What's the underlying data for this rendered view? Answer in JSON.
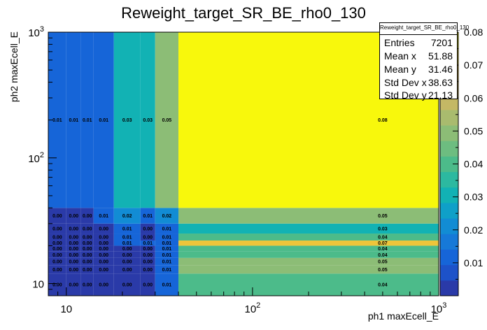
{
  "chart_data": {
    "type": "heatmap",
    "title": "Reweight_target_SR_BE_rho0_130",
    "xlabel": "ph1 maxEcell_E",
    "ylabel": "ph2 maxEcell_E",
    "x_scale": "log",
    "y_scale": "log",
    "xlim": [
      8,
      1000
    ],
    "ylim": [
      8,
      1000
    ],
    "x_ticks": [
      {
        "value": 10,
        "base": "10",
        "exp": ""
      },
      {
        "value": 100,
        "base": "10",
        "exp": "2"
      },
      {
        "value": 1000,
        "base": "10",
        "exp": "3"
      }
    ],
    "y_ticks": [
      {
        "value": 10,
        "base": "10",
        "exp": ""
      },
      {
        "value": 100,
        "base": "10",
        "exp": "2"
      },
      {
        "value": 1000,
        "base": "10",
        "exp": "3"
      }
    ],
    "x_edges": [
      8,
      10,
      12,
      14,
      18,
      25,
      30,
      40,
      1000
    ],
    "y_edges": [
      8,
      12,
      14,
      16,
      18,
      20,
      22,
      25,
      30,
      40,
      1000
    ],
    "values": [
      [
        0.0,
        0.0,
        0.0,
        0.0,
        0.0,
        0.0,
        0.01,
        0.04
      ],
      [
        0.0,
        0.0,
        0.0,
        0.0,
        0.0,
        0.0,
        0.01,
        0.05
      ],
      [
        0.0,
        0.0,
        0.0,
        0.0,
        0.0,
        0.0,
        0.01,
        0.05
      ],
      [
        0.0,
        0.0,
        0.0,
        0.0,
        0.0,
        0.0,
        0.01,
        0.04
      ],
      [
        0.0,
        0.0,
        0.0,
        0.0,
        0.0,
        0.0,
        0.01,
        0.04
      ],
      [
        0.0,
        0.0,
        0.0,
        0.0,
        0.01,
        0.01,
        0.01,
        0.07
      ],
      [
        0.0,
        0.0,
        0.0,
        0.0,
        0.01,
        0.0,
        0.01,
        0.04
      ],
      [
        0.0,
        0.0,
        0.0,
        0.0,
        0.01,
        0.0,
        0.01,
        0.03
      ],
      [
        0.0,
        0.0,
        0.0,
        0.01,
        0.02,
        0.01,
        0.02,
        0.05
      ],
      [
        0.01,
        0.01,
        0.01,
        0.01,
        0.03,
        0.03,
        0.05,
        0.08
      ]
    ],
    "z_range": [
      0,
      0.08
    ],
    "z_ticks": [
      "0.01",
      "0.02",
      "0.03",
      "0.04",
      "0.05",
      "0.06",
      "0.07",
      "0.08"
    ],
    "palette": [
      "#2a3aa8",
      "#1d52c9",
      "#1665d8",
      "#1679d8",
      "#128cd4",
      "#0fa0c8",
      "#12b2b4",
      "#2cb9a0",
      "#4cbb8a",
      "#6dbd80",
      "#8cbd76",
      "#a9bb6e",
      "#c4b865",
      "#dcb84d",
      "#eec53a",
      "#f9df28",
      "#f8f80c"
    ],
    "stats": {
      "title": "Reweight_target_SR_BE_rho0_130",
      "rows": [
        {
          "label": "Entries",
          "value": "7201"
        },
        {
          "label": "Mean x",
          "value": "51.88"
        },
        {
          "label": "Mean y",
          "value": "31.46"
        },
        {
          "label": "Std Dev x",
          "value": "38.63"
        },
        {
          "label": "Std Dev y",
          "value": "21.13"
        }
      ]
    }
  }
}
